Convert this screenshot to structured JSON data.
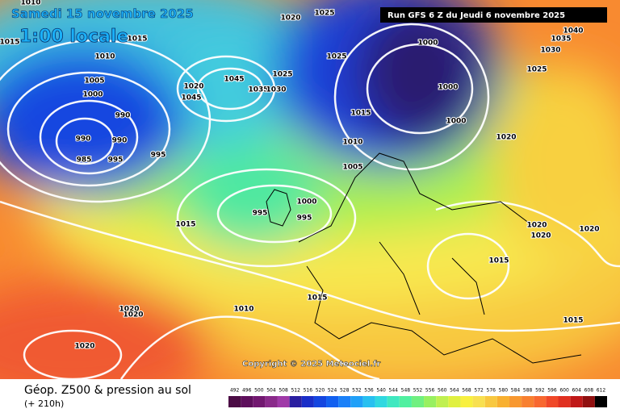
{
  "header": {
    "date": "Samedi 15 novembre 2025",
    "time": "1:00 locale",
    "run": "Run GFS 6 Z du Jeudi 6 novembre 2025"
  },
  "map": {
    "copyright": "Copyright © 2025 Meteociel.fr",
    "isobar_labels": [
      1010,
      1015,
      1020,
      1025,
      1015,
      1010,
      1005,
      1000,
      990,
      990,
      990,
      985,
      995,
      995,
      1020,
      1045,
      1045,
      1035,
      1030,
      1025,
      1025,
      1015,
      1010,
      1005,
      1000,
      1000,
      1000,
      1020,
      1025,
      1030,
      1035,
      1040,
      1000,
      995,
      995,
      1015,
      1015,
      1010,
      1020,
      1020,
      1020,
      1020,
      1020,
      1020,
      1015,
      1015
    ]
  },
  "footer": {
    "title": "Géop. Z500 & pression au sol",
    "lead": "(+ 210h)"
  },
  "colorbar": {
    "values": [
      492,
      496,
      500,
      504,
      508,
      512,
      516,
      520,
      524,
      528,
      532,
      536,
      540,
      544,
      548,
      552,
      556,
      560,
      564,
      568,
      572,
      576,
      580,
      584,
      588,
      592,
      596,
      600,
      604,
      608,
      612
    ],
    "colors": [
      "#4b0c45",
      "#5e0f5c",
      "#721870",
      "#8a2a8a",
      "#a03aa8",
      "#2a1ea0",
      "#1a2ec8",
      "#1446e0",
      "#1260f0",
      "#1a80f8",
      "#20a0f8",
      "#28c0f0",
      "#30d8e0",
      "#40e8c0",
      "#50f0a0",
      "#70f080",
      "#98f060",
      "#c0f050",
      "#e0f040",
      "#f8f040",
      "#f8e050",
      "#f8c840",
      "#f8b030",
      "#f89830",
      "#f88030",
      "#f86830",
      "#f04828",
      "#e03020",
      "#c01818",
      "#901010",
      "#000000"
    ]
  }
}
